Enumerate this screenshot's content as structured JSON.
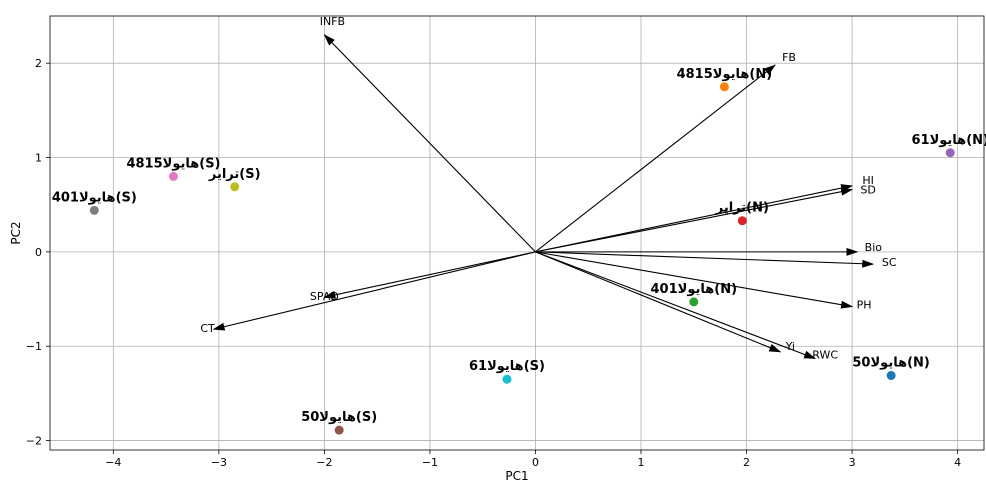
{
  "chart_data": {
    "type": "scatter",
    "title": "",
    "xlabel": "PC1",
    "ylabel": "PC2",
    "xlim": [
      -4.6,
      4.25
    ],
    "ylim": [
      -2.1,
      2.5
    ],
    "xticks": [
      -4,
      -3,
      -2,
      -1,
      0,
      1,
      2,
      3,
      4
    ],
    "yticks": [
      -2,
      -1,
      0,
      1,
      2
    ],
    "grid": true,
    "points": [
      {
        "label": "هایولا50(N)",
        "x": 3.37,
        "y": -1.31,
        "color": "#1f77b4"
      },
      {
        "label": "هایولا4815(N)",
        "x": 1.79,
        "y": 1.75,
        "color": "#ff7f0e"
      },
      {
        "label": "هایولا401(N)",
        "x": 1.5,
        "y": -0.53,
        "color": "#2ca02c"
      },
      {
        "label": "ترایر(N)",
        "x": 1.96,
        "y": 0.33,
        "color": "#d62728"
      },
      {
        "label": "هایولا61(N)",
        "x": 3.93,
        "y": 1.05,
        "color": "#9467bd"
      },
      {
        "label": "هایولا50(S)",
        "x": -1.86,
        "y": -1.89,
        "color": "#8c564b"
      },
      {
        "label": "هایولا4815(S)",
        "x": -3.43,
        "y": 0.8,
        "color": "#e377c2"
      },
      {
        "label": "هایولا401(S)",
        "x": -4.18,
        "y": 0.44,
        "color": "#7f7f7f"
      },
      {
        "label": "ترایر(S)",
        "x": -2.85,
        "y": 0.69,
        "color": "#bcbd22"
      },
      {
        "label": "هایولا61(S)",
        "x": -0.27,
        "y": -1.35,
        "color": "#17becf"
      }
    ],
    "vectors": [
      {
        "name": "INFB",
        "x": -2.0,
        "y": 2.3
      },
      {
        "name": "FB",
        "x": 2.27,
        "y": 1.98
      },
      {
        "name": "HI",
        "x": 3.0,
        "y": 0.7
      },
      {
        "name": "SD",
        "x": 3.0,
        "y": 0.66
      },
      {
        "name": "Bio",
        "x": 3.05,
        "y": 0.0
      },
      {
        "name": "SC",
        "x": 3.2,
        "y": -0.13
      },
      {
        "name": "PH",
        "x": 3.0,
        "y": -0.58
      },
      {
        "name": "Yi",
        "x": 2.32,
        "y": -1.06
      },
      {
        "name": "RWC",
        "x": 2.65,
        "y": -1.13
      },
      {
        "name": "SPAD",
        "x": -2.0,
        "y": -0.48
      },
      {
        "name": "CT",
        "x": -3.05,
        "y": -0.82
      }
    ]
  }
}
